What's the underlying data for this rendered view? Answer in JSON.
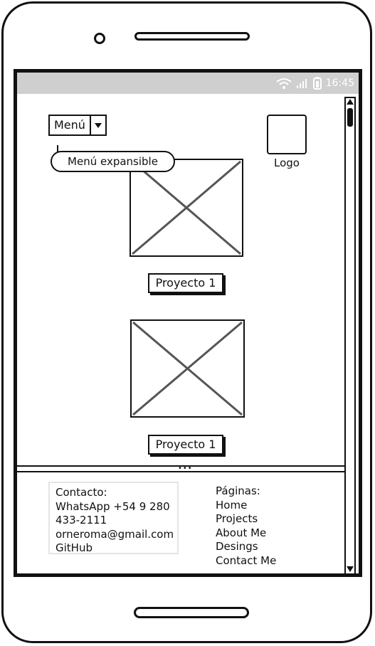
{
  "status_bar": {
    "time": "16:45",
    "icons": [
      "wifi-icon",
      "signal-icon",
      "battery-icon"
    ]
  },
  "header": {
    "menu_label": "Menú",
    "logo_label": "Logo"
  },
  "tooltip": {
    "text": "Menú expansible"
  },
  "projects": [
    {
      "button_label": "Proyecto 1"
    },
    {
      "button_label": "Proyecto 1"
    }
  ],
  "footer": {
    "contact": {
      "lines": [
        "Contacto:",
        "WhatsApp +54 9 280",
        "433-2111",
        "orneroma@gmail.com",
        "GitHub"
      ]
    },
    "pages": {
      "title": "Páginas:",
      "links": [
        "Home",
        "Projects",
        "About Me",
        "Desings",
        "Contact Me"
      ]
    }
  },
  "colors": {
    "status_bar": "#cfcfcf",
    "ink": "#111111"
  }
}
